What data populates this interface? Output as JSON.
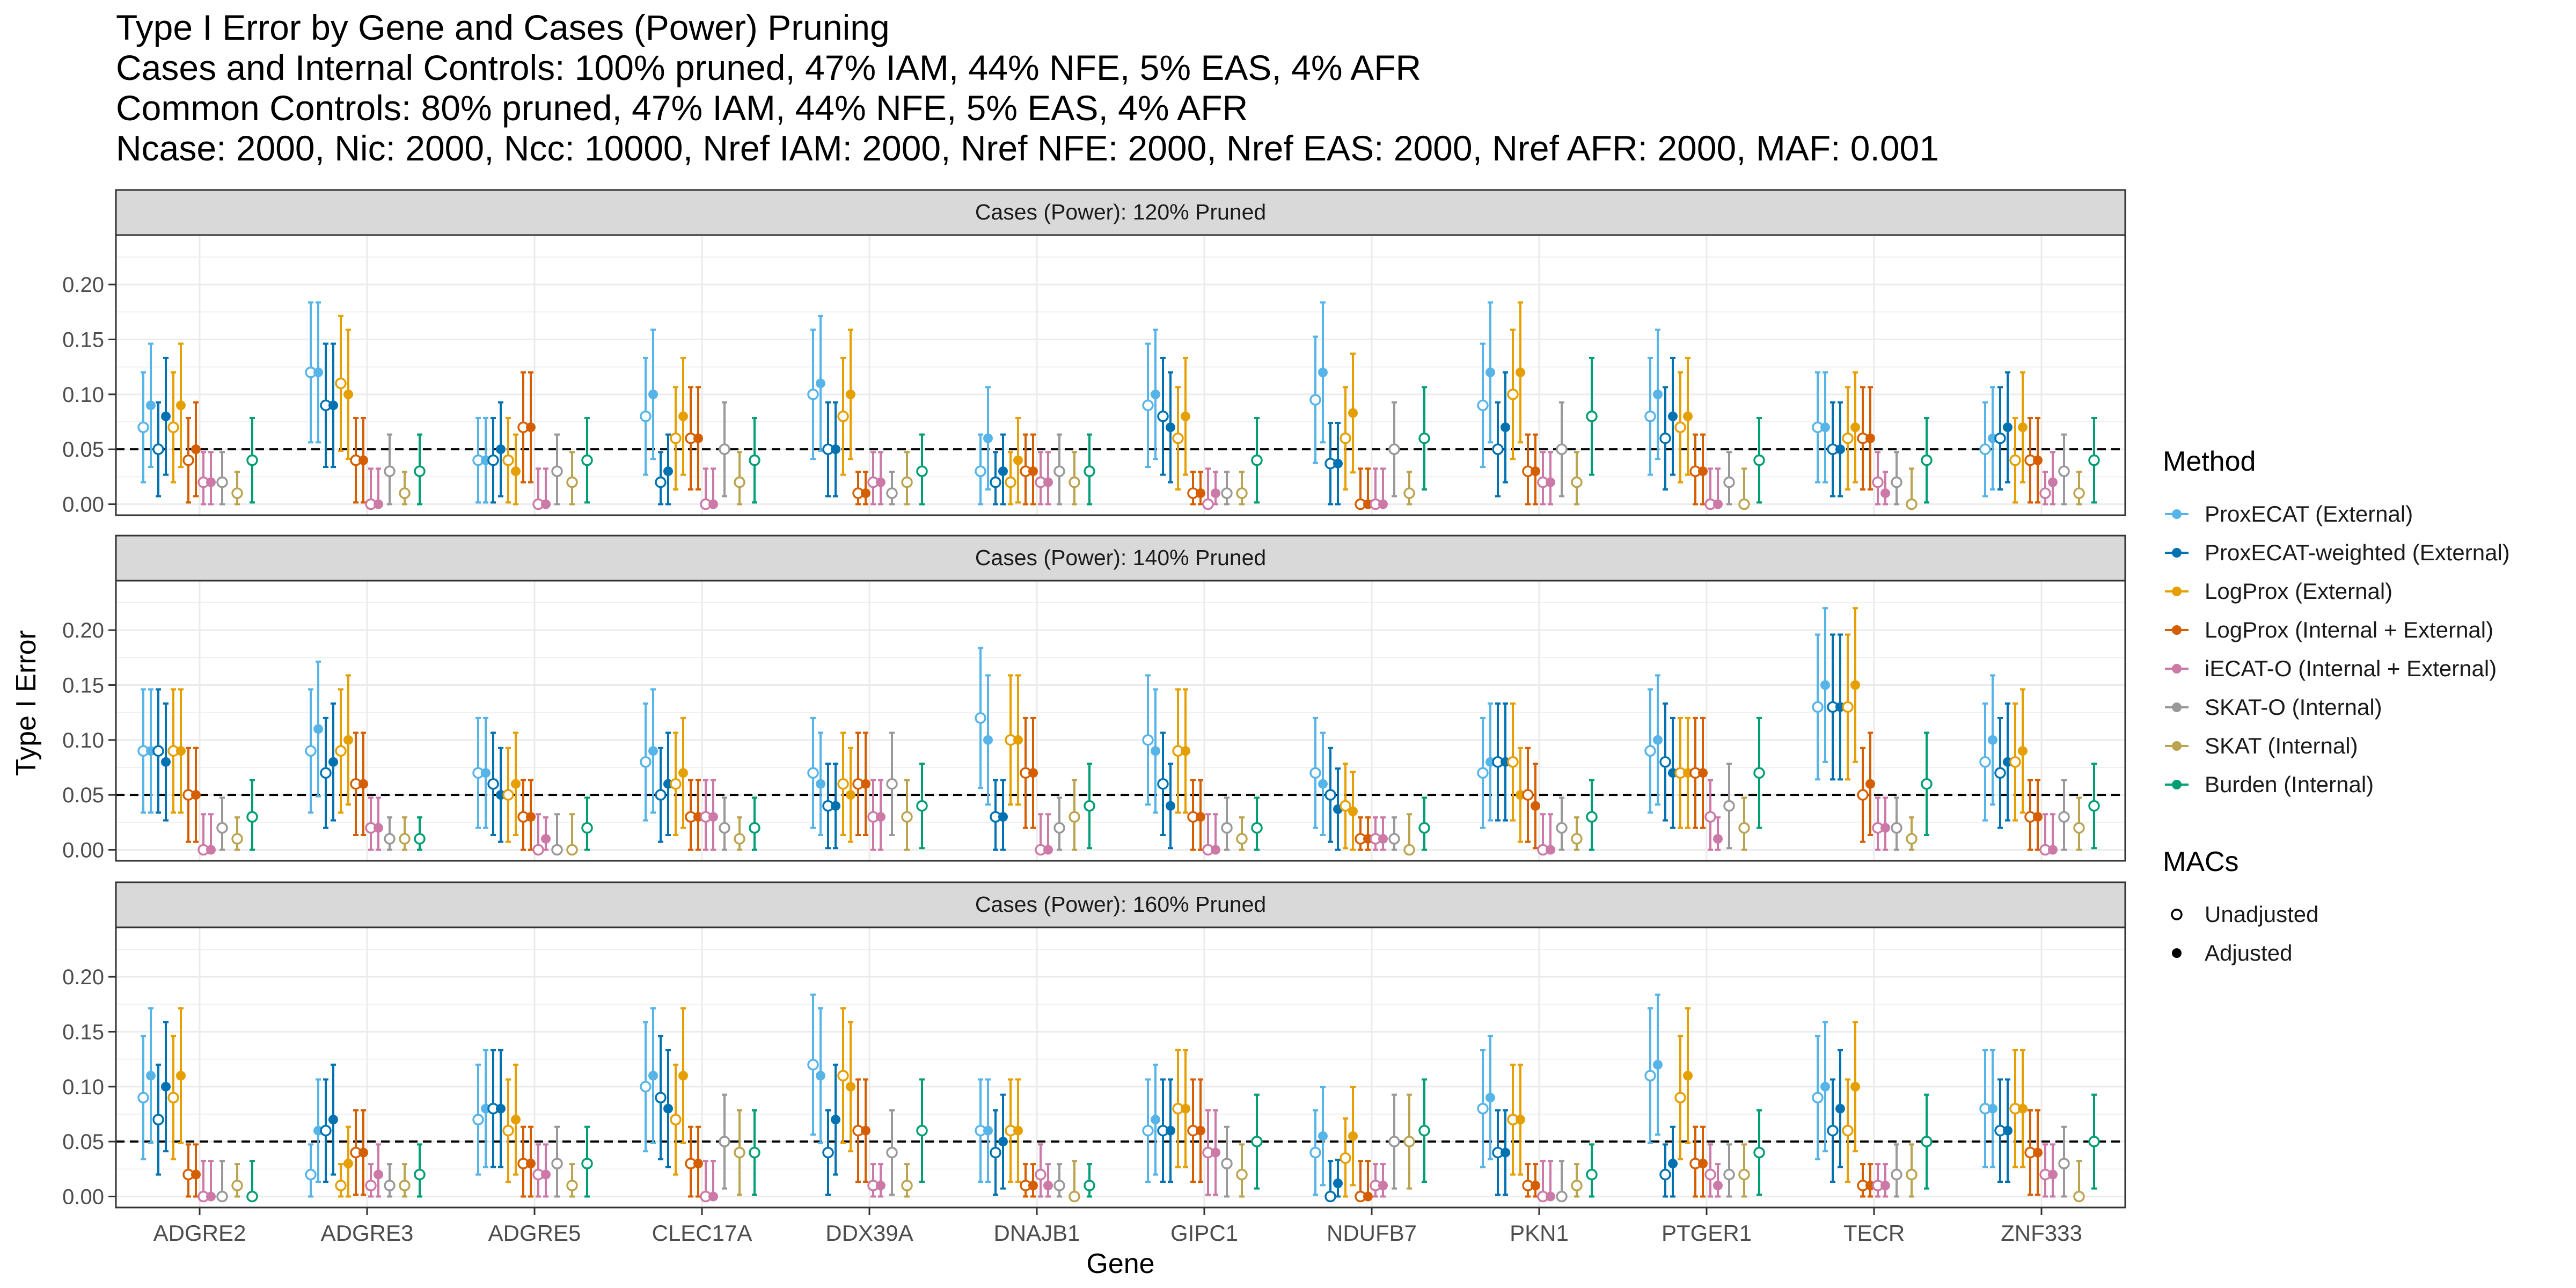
{
  "title_lines": [
    "Type I Error by Gene and Cases (Power) Pruning",
    "Cases and Internal Controls: 100% pruned, 47% IAM, 44% NFE, 5% EAS, 4% AFR",
    "Common Controls: 80% pruned, 47% IAM, 44% NFE, 5% EAS, 4% AFR",
    "Ncase: 2000, Nic: 2000, Ncc: 10000, Nref IAM: 2000, Nref NFE: 2000, Nref EAS: 2000, Nref AFR: 2000, MAF: 0.001"
  ],
  "legend": {
    "method_title": "Method",
    "methods": [
      {
        "label": "ProxECAT (External)",
        "color": "#56B4E9"
      },
      {
        "label": "ProxECAT-weighted (External)",
        "color": "#0072B2"
      },
      {
        "label": "LogProx (External)",
        "color": "#E69F00"
      },
      {
        "label": "LogProx (Internal + External)",
        "color": "#D55E00"
      },
      {
        "label": "iECAT-O (Internal + External)",
        "color": "#CC79A7"
      },
      {
        "label": "SKAT-O (Internal)",
        "color": "#999999"
      },
      {
        "label": "SKAT (Internal)",
        "color": "#BBA450"
      },
      {
        "label": "Burden (Internal)",
        "color": "#009E73"
      }
    ],
    "macs_title": "MACs",
    "macs": [
      {
        "label": "Unadjusted",
        "marker": "open-circle"
      },
      {
        "label": "Adjusted",
        "marker": "filled-circle"
      }
    ]
  },
  "chart_data": {
    "type": "scatter",
    "subtype": "point-with-error-bars",
    "xlabel": "Gene",
    "ylabel": "Type I Error",
    "ylim": [
      -0.01,
      0.245
    ],
    "yticks": [
      "0.00",
      "0.05",
      "0.10",
      "0.15",
      "0.20"
    ],
    "reference_line": 0.05,
    "grid": true,
    "legend_position": "right",
    "genes": [
      "ADGRE2",
      "ADGRE3",
      "ADGRE5",
      "CLEC17A",
      "DDX39A",
      "DNAJB1",
      "GIPC1",
      "NDUFB7",
      "PKN1",
      "PTGER1",
      "TECR",
      "ZNF333"
    ],
    "error_bar_halfwidth_note": "95% interval",
    "panels": [
      {
        "strip": "Cases (Power): 120% Pruned",
        "series": [
          {
            "method": "ProxECAT (External)",
            "unadjusted": [
              0.07,
              0.12,
              0.04,
              0.08,
              0.1,
              0.03,
              0.09,
              0.095,
              0.09,
              0.08,
              0.07,
              0.05
            ],
            "adjusted": [
              0.09,
              0.12,
              0.04,
              0.1,
              0.11,
              0.06,
              0.1,
              0.12,
              0.12,
              0.1,
              0.07,
              0.06
            ]
          },
          {
            "method": "ProxECAT-weighted (External)",
            "unadjusted": [
              0.05,
              0.09,
              0.04,
              0.02,
              0.05,
              0.02,
              0.08,
              0.037,
              0.05,
              0.06,
              0.05,
              0.06
            ],
            "adjusted": [
              0.08,
              0.09,
              0.05,
              0.03,
              0.05,
              0.03,
              0.07,
              0.037,
              0.07,
              0.08,
              0.05,
              0.07
            ]
          },
          {
            "method": "LogProx (External)",
            "unadjusted": [
              0.07,
              0.11,
              0.04,
              0.06,
              0.08,
              0.02,
              0.06,
              0.06,
              0.1,
              0.07,
              0.06,
              0.04
            ],
            "adjusted": [
              0.09,
              0.1,
              0.03,
              0.08,
              0.1,
              0.04,
              0.08,
              0.083,
              0.12,
              0.08,
              0.07,
              0.07
            ]
          },
          {
            "method": "LogProx (Internal + External)",
            "unadjusted": [
              0.04,
              0.04,
              0.07,
              0.06,
              0.01,
              0.03,
              0.01,
              0.0,
              0.03,
              0.03,
              0.06,
              0.04
            ],
            "adjusted": [
              0.05,
              0.04,
              0.07,
              0.06,
              0.01,
              0.03,
              0.01,
              0.0,
              0.03,
              0.03,
              0.06,
              0.04
            ]
          },
          {
            "method": "iECAT-O (Internal + External)",
            "unadjusted": [
              0.02,
              0.0,
              0.0,
              0.0,
              0.02,
              0.02,
              0.0,
              0.0,
              0.02,
              0.0,
              0.02,
              0.01
            ],
            "adjusted": [
              0.02,
              0.0,
              0.0,
              0.0,
              0.02,
              0.02,
              0.01,
              0.0,
              0.02,
              0.0,
              0.01,
              0.02
            ]
          },
          {
            "method": "SKAT-O (Internal)",
            "unadjusted": [
              0.02,
              0.03,
              0.03,
              0.05,
              0.01,
              0.03,
              0.01,
              0.05,
              0.05,
              0.02,
              0.02,
              0.03
            ]
          },
          {
            "method": "SKAT (Internal)",
            "unadjusted": [
              0.01,
              0.01,
              0.02,
              0.02,
              0.02,
              0.02,
              0.01,
              0.01,
              0.02,
              0.0,
              0.0,
              0.01
            ]
          },
          {
            "method": "Burden (Internal)",
            "unadjusted": [
              0.04,
              0.03,
              0.04,
              0.04,
              0.03,
              0.03,
              0.04,
              0.06,
              0.08,
              0.04,
              0.04,
              0.04
            ]
          }
        ]
      },
      {
        "strip": "Cases (Power): 140% Pruned",
        "series": [
          {
            "method": "ProxECAT (External)",
            "unadjusted": [
              0.09,
              0.09,
              0.07,
              0.08,
              0.07,
              0.12,
              0.1,
              0.07,
              0.07,
              0.09,
              0.13,
              0.08
            ],
            "adjusted": [
              0.09,
              0.11,
              0.07,
              0.09,
              0.06,
              0.1,
              0.09,
              0.06,
              0.08,
              0.1,
              0.15,
              0.1
            ]
          },
          {
            "method": "ProxECAT-weighted (External)",
            "unadjusted": [
              0.09,
              0.07,
              0.06,
              0.05,
              0.04,
              0.03,
              0.06,
              0.05,
              0.08,
              0.08,
              0.13,
              0.07
            ],
            "adjusted": [
              0.08,
              0.08,
              0.05,
              0.06,
              0.04,
              0.03,
              0.04,
              0.037,
              0.08,
              0.07,
              0.13,
              0.08
            ]
          },
          {
            "method": "LogProx (External)",
            "unadjusted": [
              0.09,
              0.09,
              0.05,
              0.06,
              0.06,
              0.1,
              0.09,
              0.04,
              0.08,
              0.07,
              0.13,
              0.08
            ],
            "adjusted": [
              0.09,
              0.1,
              0.06,
              0.07,
              0.05,
              0.1,
              0.09,
              0.035,
              0.05,
              0.07,
              0.15,
              0.09
            ]
          },
          {
            "method": "LogProx (Internal + External)",
            "unadjusted": [
              0.05,
              0.06,
              0.03,
              0.03,
              0.06,
              0.07,
              0.03,
              0.01,
              0.05,
              0.07,
              0.05,
              0.03
            ],
            "adjusted": [
              0.05,
              0.06,
              0.03,
              0.03,
              0.06,
              0.07,
              0.03,
              0.01,
              0.04,
              0.07,
              0.06,
              0.03
            ]
          },
          {
            "method": "iECAT-O (Internal + External)",
            "unadjusted": [
              0.0,
              0.02,
              0.0,
              0.03,
              0.03,
              0.0,
              0.0,
              0.01,
              0.0,
              0.03,
              0.02,
              0.0
            ],
            "adjusted": [
              0.0,
              0.02,
              0.01,
              0.03,
              0.03,
              0.0,
              0.0,
              0.01,
              0.0,
              0.01,
              0.02,
              0.0
            ]
          },
          {
            "method": "SKAT-O (Internal)",
            "unadjusted": [
              0.02,
              0.01,
              0.0,
              0.02,
              0.06,
              0.02,
              0.02,
              0.01,
              0.02,
              0.04,
              0.02,
              0.03
            ]
          },
          {
            "method": "SKAT (Internal)",
            "unadjusted": [
              0.01,
              0.01,
              0.0,
              0.01,
              0.03,
              0.03,
              0.01,
              0.0,
              0.01,
              0.02,
              0.01,
              0.02
            ]
          },
          {
            "method": "Burden (Internal)",
            "unadjusted": [
              0.03,
              0.01,
              0.02,
              0.02,
              0.04,
              0.04,
              0.02,
              0.02,
              0.03,
              0.07,
              0.06,
              0.04
            ]
          }
        ]
      },
      {
        "strip": "Cases (Power): 160% Pruned",
        "series": [
          {
            "method": "ProxECAT (External)",
            "unadjusted": [
              0.09,
              0.02,
              0.07,
              0.1,
              0.12,
              0.06,
              0.06,
              0.04,
              0.08,
              0.11,
              0.09,
              0.08
            ],
            "adjusted": [
              0.11,
              0.06,
              0.08,
              0.11,
              0.11,
              0.06,
              0.07,
              0.055,
              0.09,
              0.12,
              0.1,
              0.08
            ]
          },
          {
            "method": "ProxECAT-weighted (External)",
            "unadjusted": [
              0.07,
              0.06,
              0.08,
              0.09,
              0.04,
              0.04,
              0.06,
              0.0,
              0.04,
              0.02,
              0.06,
              0.06
            ],
            "adjusted": [
              0.1,
              0.07,
              0.08,
              0.08,
              0.07,
              0.05,
              0.06,
              0.012,
              0.04,
              0.03,
              0.08,
              0.06
            ]
          },
          {
            "method": "LogProx (External)",
            "unadjusted": [
              0.09,
              0.01,
              0.06,
              0.07,
              0.11,
              0.06,
              0.08,
              0.035,
              0.07,
              0.09,
              0.06,
              0.08
            ],
            "adjusted": [
              0.11,
              0.03,
              0.07,
              0.11,
              0.1,
              0.06,
              0.08,
              0.055,
              0.07,
              0.11,
              0.1,
              0.08
            ]
          },
          {
            "method": "LogProx (Internal + External)",
            "unadjusted": [
              0.02,
              0.04,
              0.03,
              0.03,
              0.06,
              0.01,
              0.06,
              0.0,
              0.01,
              0.03,
              0.01,
              0.04
            ],
            "adjusted": [
              0.02,
              0.04,
              0.03,
              0.03,
              0.06,
              0.01,
              0.06,
              0.0,
              0.01,
              0.03,
              0.01,
              0.04
            ]
          },
          {
            "method": "iECAT-O (Internal + External)",
            "unadjusted": [
              0.0,
              0.01,
              0.02,
              0.0,
              0.01,
              0.02,
              0.04,
              0.01,
              0.0,
              0.02,
              0.01,
              0.02
            ],
            "adjusted": [
              0.0,
              0.02,
              0.02,
              0.0,
              0.01,
              0.01,
              0.04,
              0.01,
              0.0,
              0.01,
              0.01,
              0.02
            ]
          },
          {
            "method": "SKAT-O (Internal)",
            "unadjusted": [
              0.0,
              0.01,
              0.03,
              0.05,
              0.04,
              0.01,
              0.03,
              0.05,
              0.0,
              0.02,
              0.02,
              0.03
            ]
          },
          {
            "method": "SKAT (Internal)",
            "unadjusted": [
              0.01,
              0.01,
              0.01,
              0.04,
              0.01,
              0.0,
              0.02,
              0.05,
              0.01,
              0.02,
              0.02,
              0.0
            ]
          },
          {
            "method": "Burden (Internal)",
            "unadjusted": [
              0.0,
              0.02,
              0.03,
              0.04,
              0.06,
              0.01,
              0.05,
              0.06,
              0.02,
              0.04,
              0.05,
              0.05
            ]
          }
        ]
      }
    ]
  }
}
